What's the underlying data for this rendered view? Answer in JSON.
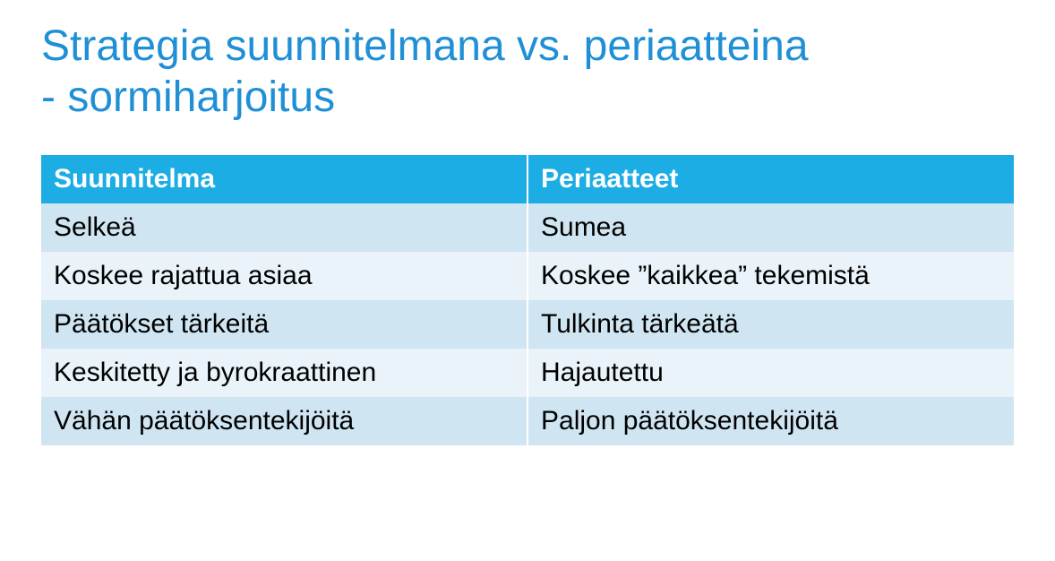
{
  "title": {
    "line1": "Strategia suunnitelmana vs. periaatteina",
    "line2": "- sormiharjoitus",
    "color": "#1f8fd6",
    "fontsize": 48,
    "fontweight": 400
  },
  "table": {
    "type": "table",
    "header_bg": "#1cade4",
    "header_fg": "#ffffff",
    "header_fontsize": 30,
    "header_fontweight": 700,
    "cell_fontsize": 30,
    "cell_fg": "#000000",
    "row_colors": [
      "#cfe5f2",
      "#e9f3f9"
    ],
    "border_color": "#ffffff",
    "columns": [
      "Suunnitelma",
      "Periaatteet"
    ],
    "rows": [
      [
        "Selkeä",
        "Sumea"
      ],
      [
        "Koskee rajattua asiaa",
        "Koskee ”kaikkea” tekemistä"
      ],
      [
        "Päätökset tärkeitä",
        "Tulkinta tärkeätä"
      ],
      [
        "Keskitetty ja byrokraattinen",
        "Hajautettu"
      ],
      [
        "Vähän päätöksentekijöitä",
        "Paljon päätöksentekijöitä"
      ]
    ]
  }
}
